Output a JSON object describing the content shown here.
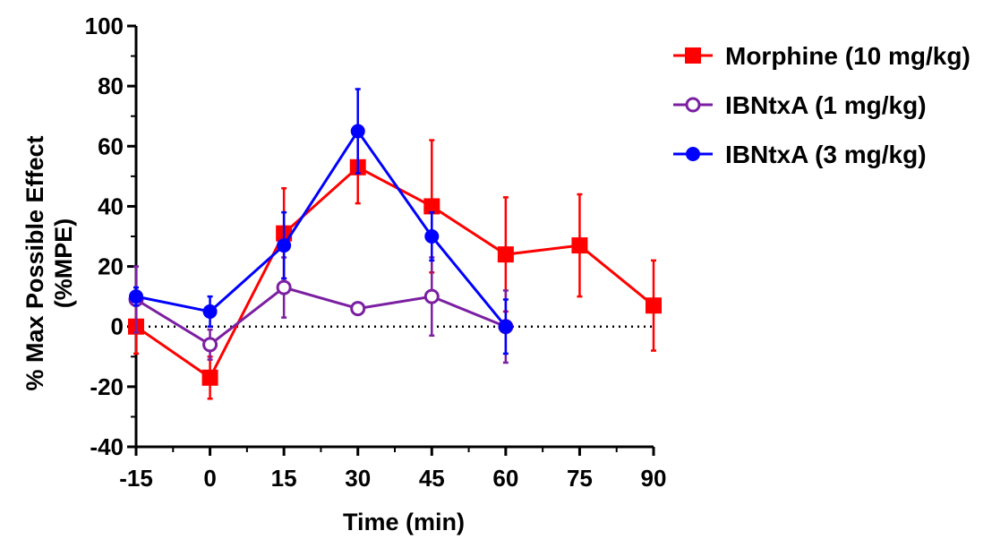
{
  "chart_data": {
    "type": "line",
    "title": "",
    "xlabel": "Time (min)",
    "ylabel_line1": "% Max Possible Effect",
    "ylabel_line2": "(%MPE)",
    "x_ticks": [
      -15,
      0,
      15,
      30,
      45,
      60,
      75,
      90
    ],
    "y_ticks": [
      -40,
      -20,
      0,
      20,
      40,
      60,
      80,
      100
    ],
    "xlim": [
      -15,
      90
    ],
    "ylim": [
      -40,
      100
    ],
    "zero_line": "dotted",
    "grid": false,
    "legend_position": "top-right",
    "series": [
      {
        "name": "Morphine (10 mg/kg)",
        "color": "#ff0000",
        "marker": "square-filled",
        "x": [
          -15,
          0,
          15,
          30,
          45,
          60,
          75,
          90
        ],
        "y": [
          0,
          -17,
          31,
          53,
          40,
          24,
          27,
          7
        ],
        "err": [
          9,
          7,
          15,
          12,
          22,
          19,
          17,
          15
        ]
      },
      {
        "name": "IBNtxA (1 mg/kg)",
        "color": "#7b1fa2",
        "marker": "circle-open",
        "x": [
          -15,
          0,
          15,
          30,
          45,
          60
        ],
        "y": [
          9,
          -6,
          13,
          6,
          10,
          0
        ],
        "err": [
          11,
          5,
          10,
          2,
          13,
          12
        ]
      },
      {
        "name": "IBNtxA (3 mg/kg)",
        "color": "#0000ff",
        "marker": "circle-filled",
        "x": [
          -15,
          0,
          15,
          30,
          45,
          60
        ],
        "y": [
          10,
          5,
          27,
          65,
          30,
          0
        ],
        "err": [
          3,
          5,
          11,
          14,
          8,
          9
        ]
      }
    ]
  }
}
